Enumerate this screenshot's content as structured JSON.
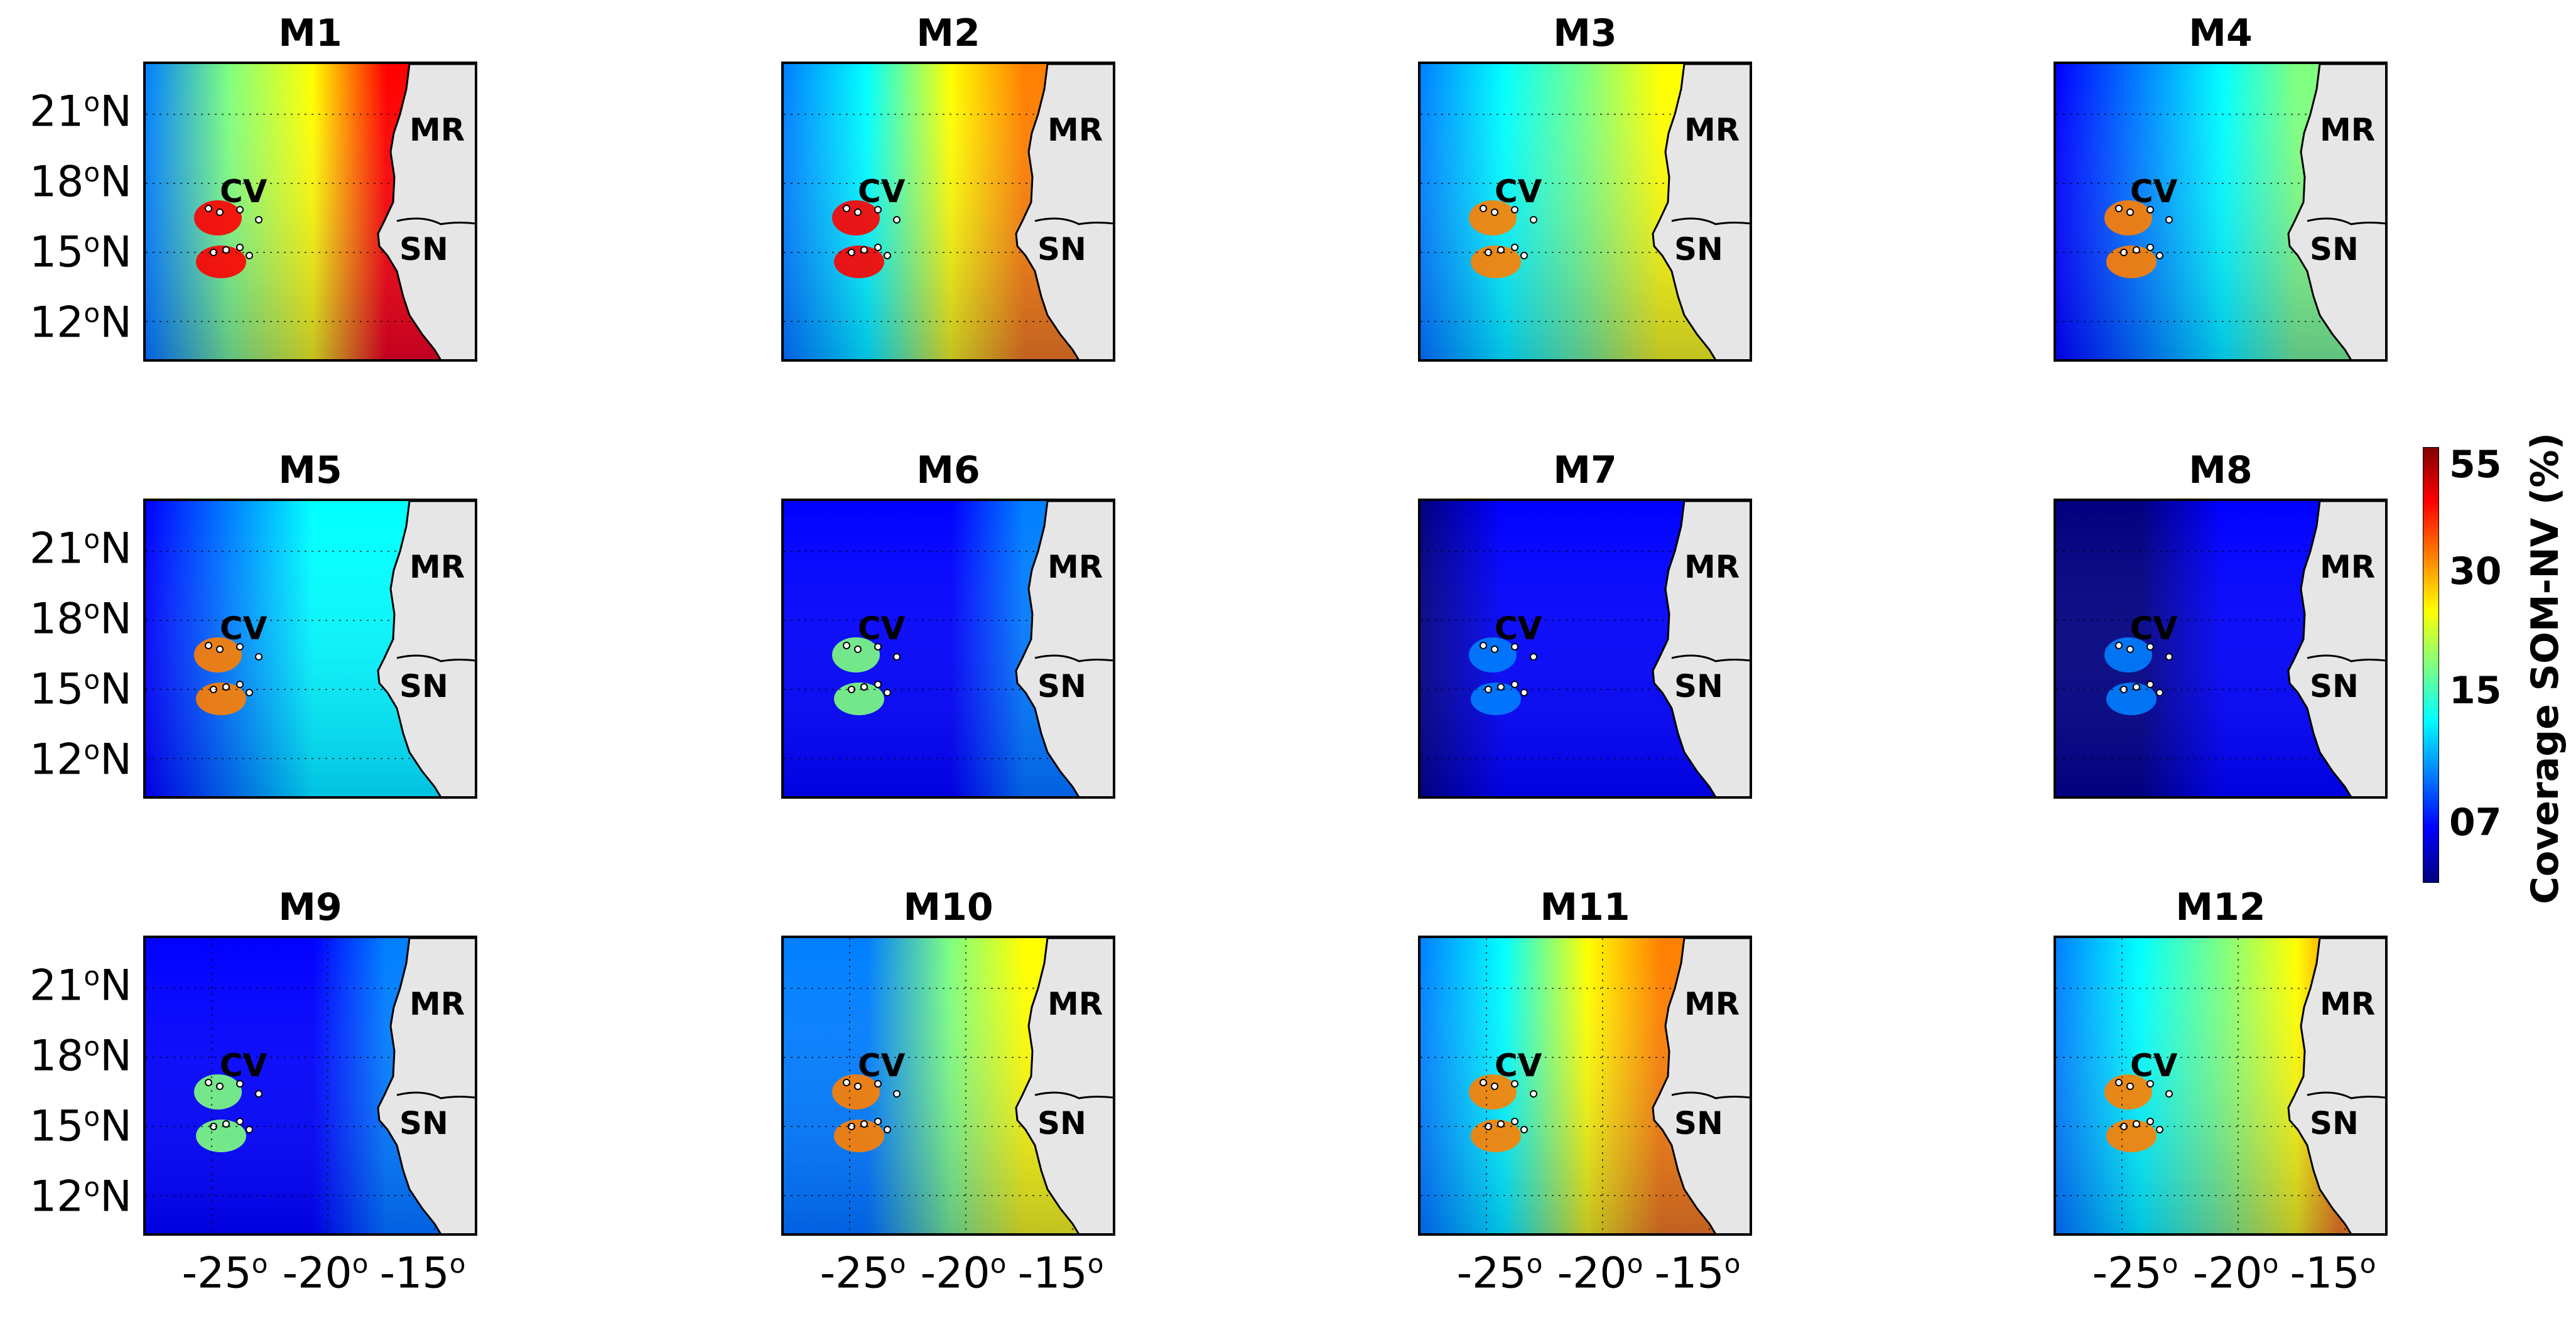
{
  "panels": [
    {
      "title": "M1",
      "level": 0.8,
      "islands": 0.85
    },
    {
      "title": "M2",
      "level": 0.7,
      "islands": 0.85
    },
    {
      "title": "M3",
      "level": 0.58,
      "islands": 0.8
    },
    {
      "title": "M4",
      "level": 0.45,
      "islands": 0.75
    },
    {
      "title": "M5",
      "level": 0.38,
      "islands": 0.75
    },
    {
      "title": "M6",
      "level": 0.22,
      "islands": 0.55
    },
    {
      "title": "M7",
      "level": 0.12,
      "islands": 0.3
    },
    {
      "title": "M8",
      "level": 0.1,
      "islands": 0.2
    },
    {
      "title": "M9",
      "level": 0.18,
      "islands": 0.45
    },
    {
      "title": "M10",
      "level": 0.55,
      "islands": 0.8
    },
    {
      "title": "M11",
      "level": 0.68,
      "islands": 0.8
    },
    {
      "title": "M12",
      "level": 0.62,
      "islands": 0.8
    }
  ],
  "region_labels": {
    "mr": "MR",
    "cv": "CV",
    "sn": "SN"
  },
  "lat_labels": [
    {
      "deg": "21",
      "hem": "N"
    },
    {
      "deg": "18",
      "hem": "N"
    },
    {
      "deg": "15",
      "hem": "N"
    },
    {
      "deg": "12",
      "hem": "N"
    }
  ],
  "lon_labels": [
    "-25",
    "-20",
    "-15"
  ],
  "colorbar": {
    "title": "Coverage SOM-NV (%)",
    "ticks": [
      "55",
      "30",
      "15",
      "07"
    ],
    "colors": [
      "#00007f",
      "#0000ff",
      "#007fff",
      "#00ffff",
      "#7fff7f",
      "#ffff00",
      "#ff7f00",
      "#ff0000",
      "#7f0000"
    ]
  },
  "land_color": "#e6e6e6"
}
